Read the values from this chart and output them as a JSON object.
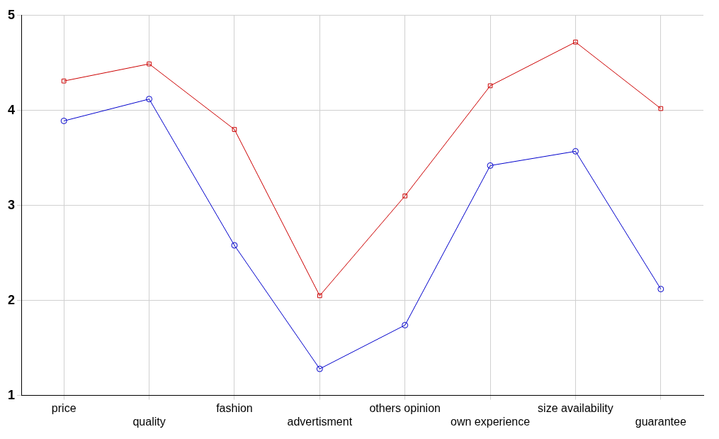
{
  "chart_data": {
    "type": "line",
    "categories": [
      "price",
      "quality",
      "fashion",
      "advertisment",
      "others opinion",
      "own experience",
      "size availability",
      "guarantee"
    ],
    "series": [
      {
        "color": "#cc0000",
        "marker": "square",
        "values": [
          4.31,
          4.49,
          3.8,
          2.05,
          3.1,
          4.26,
          4.72,
          4.02
        ]
      },
      {
        "color": "#0000cc",
        "marker": "circle",
        "values": [
          3.89,
          4.12,
          2.58,
          1.28,
          1.74,
          3.42,
          3.57,
          2.12
        ]
      }
    ],
    "ylim": [
      1,
      5
    ],
    "yticks": [
      1,
      2,
      3,
      4,
      5
    ],
    "grid": true,
    "legend": false
  }
}
